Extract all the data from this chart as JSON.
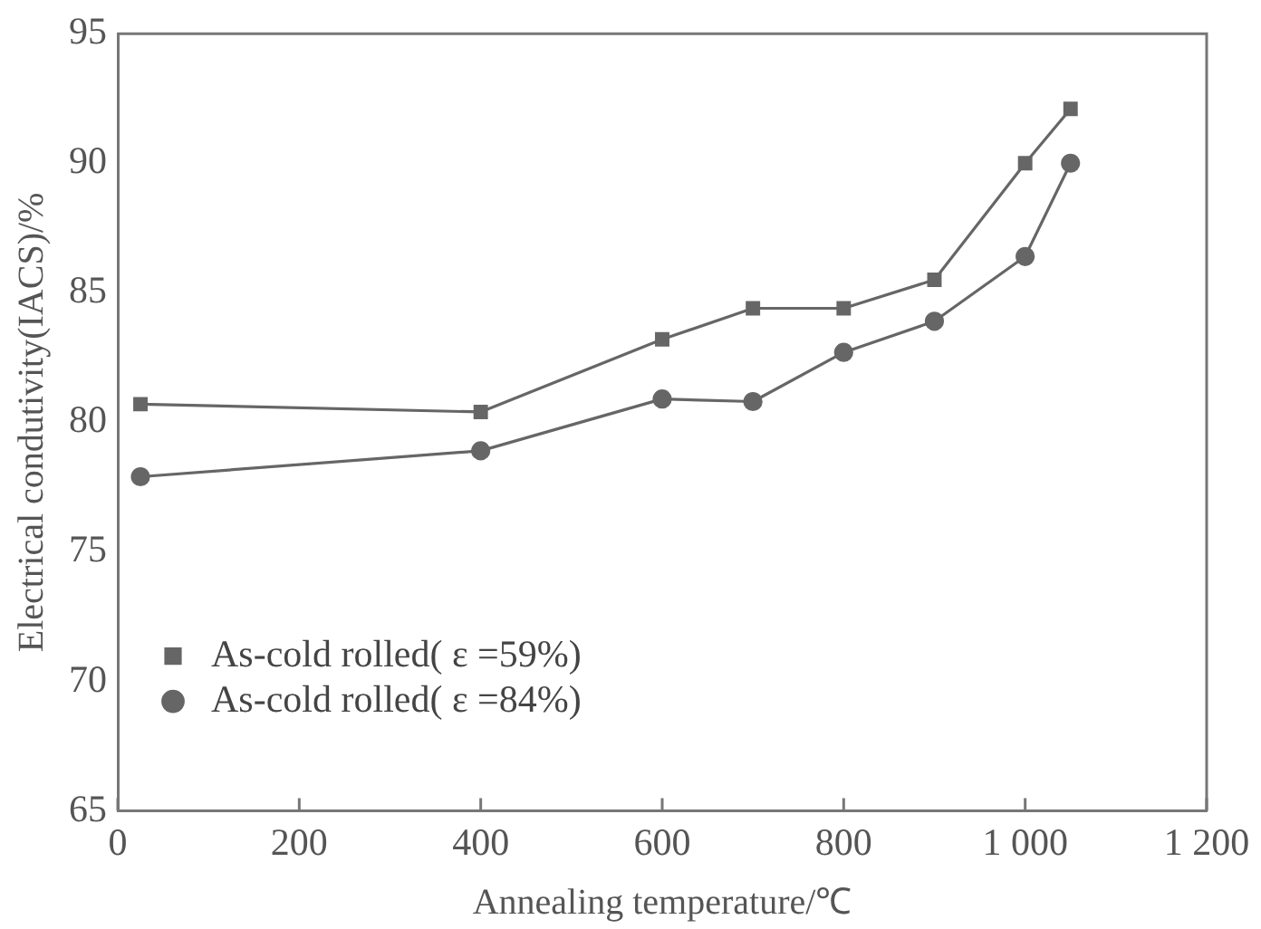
{
  "chart_data": {
    "type": "line",
    "xlabel": "Annealing temperature/℃",
    "ylabel": "Electrical condutivity(IACS)/%",
    "xlim": [
      0,
      1200
    ],
    "xticks": [
      0,
      200,
      400,
      600,
      800,
      {
        "value": 1000,
        "label": "1 000"
      },
      {
        "value": 1200,
        "label": "1 200"
      }
    ],
    "ylim": [
      65,
      95
    ],
    "yticks": [
      65,
      70,
      75,
      80,
      85,
      90,
      95
    ],
    "grid": false,
    "legend": "bottom left",
    "line_style": "solid",
    "series": [
      {
        "name": "As-cold rolled( ε =59%)",
        "color": "#666666",
        "marker": "square",
        "x": [
          25,
          400,
          600,
          700,
          800,
          900,
          1000,
          1050
        ],
        "values": [
          80.7,
          80.4,
          83.2,
          84.4,
          84.4,
          85.5,
          90.0,
          92.1
        ]
      },
      {
        "name": "As-cold rolled( ε =84%)",
        "color": "#666666",
        "marker": "circle",
        "x": [
          25,
          400,
          600,
          700,
          800,
          900,
          1000,
          1050
        ],
        "values": [
          77.9,
          78.9,
          80.9,
          80.8,
          82.7,
          83.9,
          86.4,
          90.0
        ]
      }
    ]
  }
}
